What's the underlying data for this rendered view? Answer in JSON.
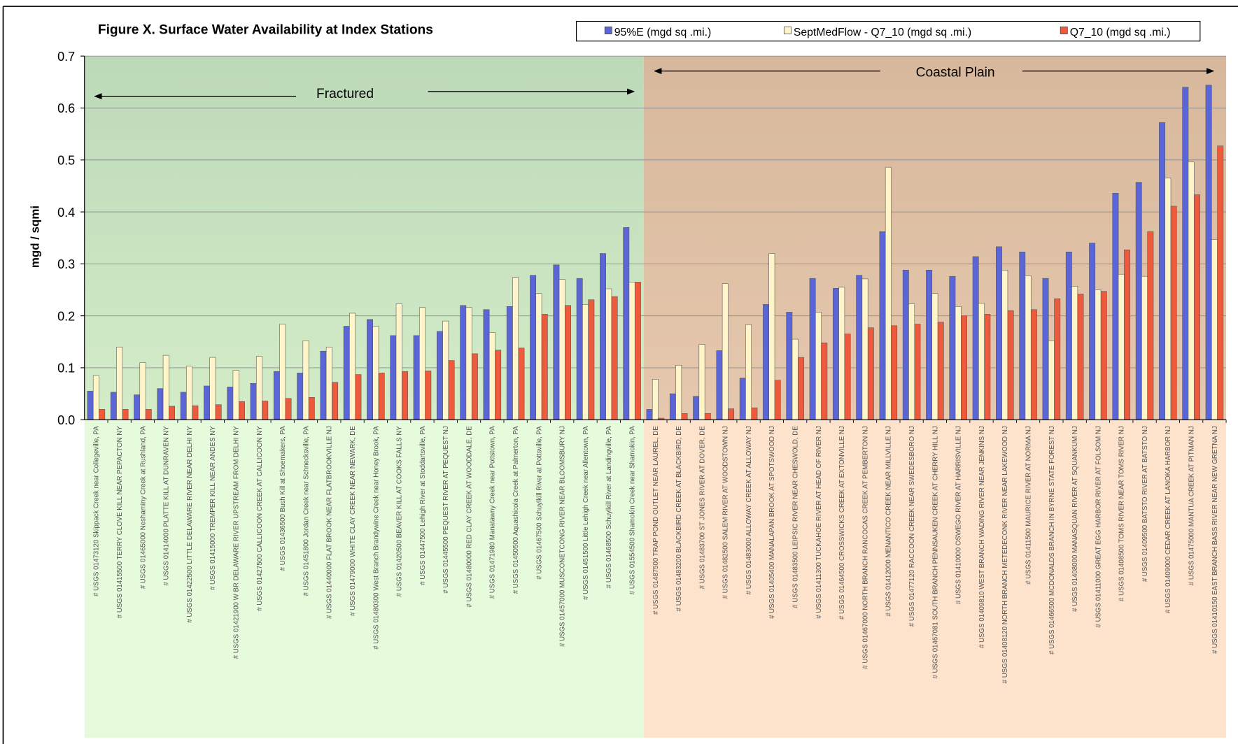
{
  "chart_data": {
    "type": "bar",
    "title": "Figure X. Surface Water Availability at Index Stations",
    "y_label": "mgd / sqmi",
    "annotations": [
      "Fractured",
      "Coastal Plain"
    ],
    "categories": [
      "# USGS 01473120 Skippack Creek near Collegeville, PA",
      "# USGS 01415500 TERRY CLOVE KILL NEAR PEPACTON NY",
      "# USGS 01465000 Neshaminy Creek at Rushland, PA",
      "# USGS 01414000 PLATTE KILL AT DUNRAVEN NY",
      "# USGS 01422500 LITTLE DELAWARE RIVER NEAR DELHI NY",
      "# USGS 01415000 TREMPER KILL NEAR ANDES NY",
      "# USGS 01421900 W BR DELAWARE RIVER UPSTREAM FROM DELHI NY",
      "# USGS 01427500 CALLICOON CREEK AT CALLICOON NY",
      "# USGS 01436500 Bush Kill at Shoemakers, PA",
      "# USGS 01451800 Jordan Creek near Schnecksville, PA",
      "# USGS 01440000 FLAT BROOK NEAR FLATBROOKVILLE NJ",
      "# USGS 01479000 WHITE CLAY CREEK NEAR NEWARK, DE",
      "# USGS 01480300 West Branch Brandywine Creek near Honey Brook, PA",
      "# USGS 01420500 BEAVER KILL AT COOKS FALLS NY",
      "# USGS 01447500 Lehigh River at Stoddartsville, PA",
      "# USGS 01445500 PEQUEST RIVER AT PEQUEST NJ",
      "# USGS 01480000 RED CLAY CREEK AT WOODDALE, DE",
      "# USGS 01471980 Manatawny Creek near Pottstown, PA",
      "# USGS 01450500 Aquashicola Creek at Palmerton, PA",
      "# USGS 01467500 Schuylkill River at Pottsville, PA",
      "# USGS 01457000 MUSCONETCONG RIVER NEAR BLOOMSBURY NJ",
      "# USGS 01451500 Little Lehigh Creek near Allentown, PA",
      "# USGS 01468500 Schuylkill River at Landingville, PA",
      "# USGS 01554500 Shamokin Creek near Shamokin, PA",
      "# USGS 01487500 TRAP POND OUTLET NEAR LAUREL, DE",
      "# USGS 01483200 BLACKBIRD CREEK AT BLACKBIRD, DE",
      "# USGS 01483700 ST JONES RIVER AT DOVER, DE",
      "# USGS 01482500 SALEM RIVER AT WOODSTOWN NJ",
      "# USGS 01483000 ALLOWAY CREEK AT ALLOWAY NJ",
      "# USGS 01405400 MANALAPAN BROOK AT SPOTSWOOD NJ",
      "# USGS 01483500 LEIPSIC RIVER NEAR CHESWOLD, DE",
      "# USGS 01411300 TUCKAHOE RIVER AT HEAD OF RIVER NJ",
      "# USGS 01464500 CROSSWICKS CREEK AT EXTONVILLE NJ",
      "# USGS 01467000 NORTH BRANCH RANCOCAS CREEK AT PEMBERTON NJ",
      "# USGS 01412000 MENANTICO CREEK NEAR MILLVILLE NJ",
      "# USGS 01477120 RACCOON CREEK NEAR SWEDESBORO NJ",
      "# USGS 01467081 SOUTH BRANCH PENNSAUKEN CREEK AT CHERRY HILL NJ",
      "# USGS 01410000 OSWEGO RIVER AT HARRISVILLE NJ",
      "# USGS 01409810 WEST BRANCH WADING RIVER NEAR JENKINS NJ",
      "# USGS 01408120 NORTH BRANCH METEDECONK RIVER NEAR LAKEWOOD NJ",
      "# USGS 01411500 MAURICE RIVER AT NORMA NJ",
      "# USGS 01466500 MCDONALDS BRANCH IN BYRNE STATE FOREST NJ",
      "# USGS 01408000 MANASQUAN RIVER AT SQUANKUM NJ",
      "# USGS 01411000 GREAT EGG HARBOR RIVER AT FOLSOM NJ",
      "# USGS 01408500 TOMS RIVER NEAR TOMS RIVER NJ",
      "# USGS 01409500 BATSTO RIVER AT BATSTO NJ",
      "# USGS 01409000 CEDAR CREEK AT LANOKA HARBOR NJ",
      "# USGS 01475000 MANTUA CREEK AT PITMAN NJ",
      "# USGS 01410150 EAST BRANCH BASS RIVER NEAR NEW GRETNA NJ"
    ],
    "series": [
      {
        "name": "95%E (mgd sq .mi.)",
        "color": "#5a66d8",
        "values": [
          0.055,
          0.053,
          0.048,
          0.06,
          0.053,
          0.065,
          0.063,
          0.07,
          0.093,
          0.09,
          0.132,
          0.18,
          0.193,
          0.162,
          0.162,
          0.17,
          0.22,
          0.212,
          0.218,
          0.278,
          0.298,
          0.272,
          0.32,
          0.37,
          0.02,
          0.05,
          0.045,
          0.133,
          0.08,
          0.222,
          0.207,
          0.272,
          0.253,
          0.278,
          0.362,
          0.288,
          0.288,
          0.276,
          0.314,
          0.333,
          0.323,
          0.272,
          0.323,
          0.34,
          0.436,
          0.457,
          0.572,
          0.64,
          0.644
        ]
      },
      {
        "name": "SeptMedFlow - Q7_10 (mgd sq .mi.)",
        "color": "#fff5c8",
        "values": [
          0.085,
          0.14,
          0.11,
          0.124,
          0.103,
          0.12,
          0.095,
          0.122,
          0.184,
          0.152,
          0.14,
          0.205,
          0.18,
          0.223,
          0.216,
          0.19,
          0.216,
          0.168,
          0.274,
          0.243,
          0.27,
          0.222,
          0.252,
          0.265,
          0.078,
          0.105,
          0.145,
          0.262,
          0.183,
          0.32,
          0.155,
          0.207,
          0.255,
          0.271,
          0.486,
          0.223,
          0.243,
          0.218,
          0.224,
          0.288,
          0.277,
          0.152,
          0.257,
          0.25,
          0.28,
          0.276,
          0.465,
          0.496,
          0.347
        ]
      },
      {
        "name": "Q7_10 (mgd sq .mi.)",
        "color": "#ee5a3c",
        "values": [
          0.02,
          0.02,
          0.02,
          0.026,
          0.027,
          0.029,
          0.035,
          0.036,
          0.041,
          0.043,
          0.072,
          0.087,
          0.09,
          0.093,
          0.094,
          0.114,
          0.127,
          0.134,
          0.138,
          0.203,
          0.22,
          0.231,
          0.237,
          0.265,
          0.003,
          0.012,
          0.012,
          0.021,
          0.023,
          0.076,
          0.12,
          0.148,
          0.165,
          0.177,
          0.181,
          0.184,
          0.188,
          0.2,
          0.203,
          0.21,
          0.212,
          0.233,
          0.242,
          0.247,
          0.327,
          0.362,
          0.411,
          0.433,
          0.527
        ]
      }
    ],
    "ylim": [
      0,
      0.7
    ],
    "yticks": [
      {
        "value": 0,
        "label": "0.0"
      },
      0.1,
      0.2,
      0.3,
      0.4,
      0.5,
      0.6,
      0.7
    ],
    "grid": true,
    "legend": "top-right"
  }
}
